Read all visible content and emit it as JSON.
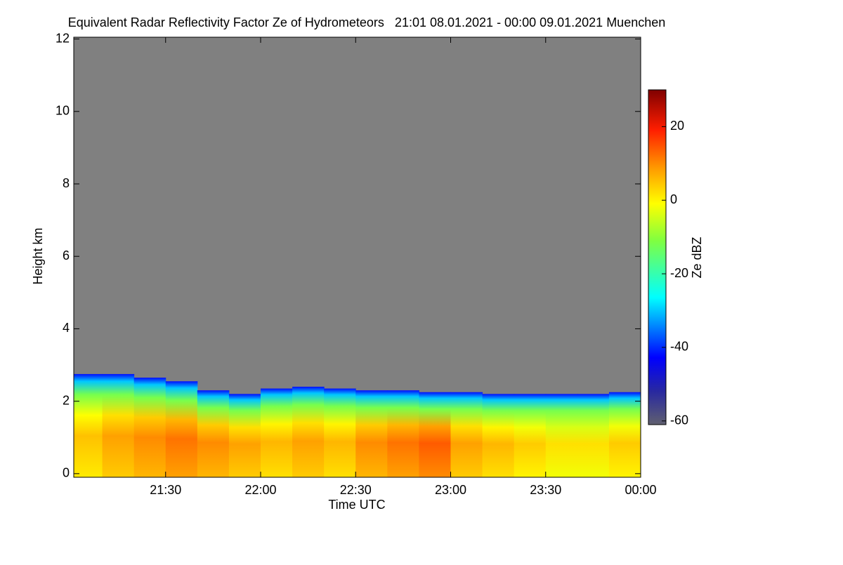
{
  "chart_data": {
    "type": "time-height",
    "title": "Equivalent Radar Reflectivity Factor Ze of Hydrometeors   21:01 08.01.2021 - 00:00 09.01.2021 Muenchen",
    "xlabel": "Time UTC",
    "ylabel": "Height km",
    "colorbar_label": "Ze dBZ",
    "xlim": [
      1261,
      1440
    ],
    "xticks": [
      {
        "value": 1290,
        "label": "21:30"
      },
      {
        "value": 1320,
        "label": "22:00"
      },
      {
        "value": 1350,
        "label": "22:30"
      },
      {
        "value": 1380,
        "label": "23:00"
      },
      {
        "value": 1410,
        "label": "23:30"
      },
      {
        "value": 1440,
        "label": "00:00"
      }
    ],
    "ylim": [
      -0.1,
      12.05
    ],
    "yticks": [
      0,
      2,
      4,
      6,
      8,
      10,
      12
    ],
    "zlim": [
      -61,
      30
    ],
    "zticks": [
      -60,
      -40,
      -20,
      0,
      20
    ],
    "missing_color": "#808080",
    "x": [
      1261,
      1270,
      1280,
      1290,
      1300,
      1310,
      1320,
      1330,
      1340,
      1350,
      1360,
      1370,
      1380,
      1390,
      1400,
      1410,
      1420,
      1430,
      1440
    ],
    "series": [
      {
        "name": "echo top",
        "values": [
          2.75,
          2.75,
          2.65,
          2.55,
          2.3,
          2.2,
          2.35,
          2.4,
          2.35,
          2.3,
          2.3,
          2.25,
          2.25,
          2.2,
          2.2,
          2.2,
          2.2,
          2.25,
          2.3
        ]
      },
      {
        "name": "low-level Ze",
        "values": [
          5,
          8,
          10,
          12,
          10,
          8,
          6,
          8,
          6,
          10,
          12,
          14,
          8,
          6,
          4,
          2,
          2,
          4,
          6
        ]
      }
    ]
  }
}
